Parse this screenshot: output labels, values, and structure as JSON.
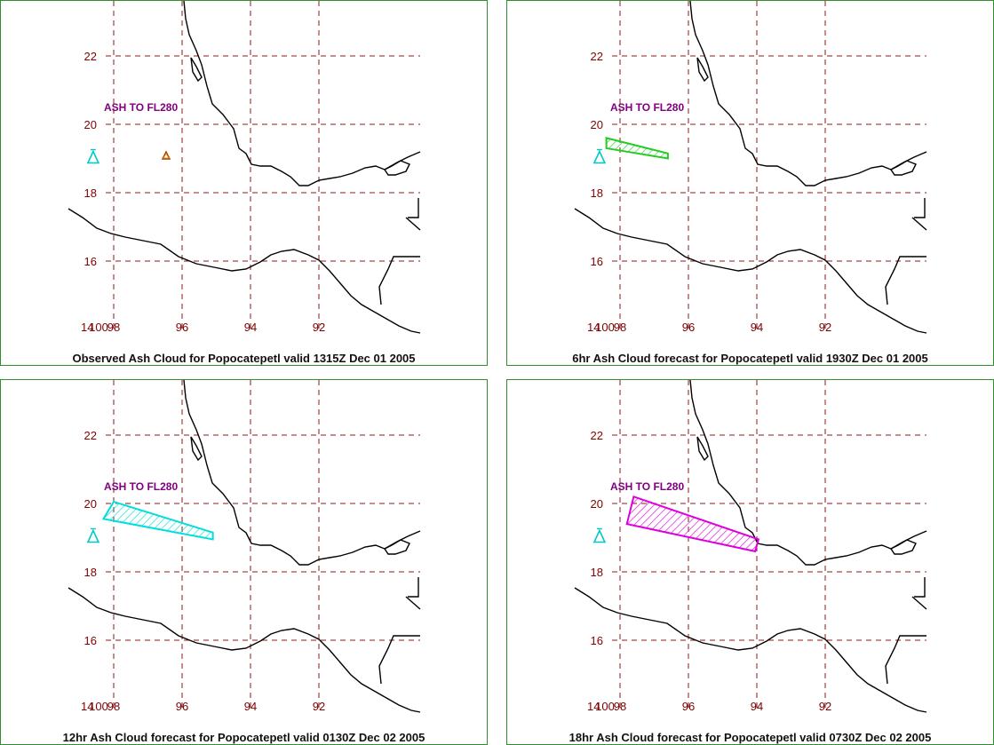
{
  "map": {
    "lat_ticks": [
      "22",
      "20",
      "18",
      "16",
      "14"
    ],
    "lon_ticks": [
      "100",
      "98",
      "96",
      "94",
      "92"
    ],
    "colors": {
      "grid": "#8b1a1a",
      "coast": "#000000",
      "border": "#2f8f2f",
      "volcano": "#00c8c8",
      "label": "#800080"
    },
    "icon": "volcano-triangle-icon"
  },
  "panels": [
    {
      "caption": "Observed Ash Cloud for Popocatepetl valid 1315Z Dec 01 2005",
      "ash_label": "ASH TO FL280",
      "cloud_color": "#ff8000",
      "cloud": []
    },
    {
      "caption": "6hr Ash Cloud forecast for Popocatepetl valid 1930Z Dec 01 2005",
      "ash_label": "ASH TO FL280",
      "cloud_color": "#22cc22",
      "cloud": [
        [
          -98.4,
          19.6
        ],
        [
          -96.6,
          19.15
        ],
        [
          -96.6,
          19.0
        ],
        [
          -98.4,
          19.3
        ]
      ]
    },
    {
      "caption": "12hr Ash Cloud forecast for Popocatepetl valid 0130Z Dec 02 2005",
      "ash_label": "ASH TO FL280",
      "cloud_color": "#00dddd",
      "cloud": [
        [
          -98.0,
          20.05
        ],
        [
          -95.1,
          19.15
        ],
        [
          -95.1,
          18.95
        ],
        [
          -98.3,
          19.55
        ]
      ]
    },
    {
      "caption": "18hr Ash Cloud forecast for Popocatepetl valid 0730Z Dec 02 2005",
      "ash_label": "ASH TO FL280",
      "cloud_color": "#dd00dd",
      "cloud": [
        [
          -97.6,
          20.2
        ],
        [
          -93.95,
          18.95
        ],
        [
          -94.05,
          18.6
        ],
        [
          -97.8,
          19.4
        ]
      ]
    }
  ]
}
